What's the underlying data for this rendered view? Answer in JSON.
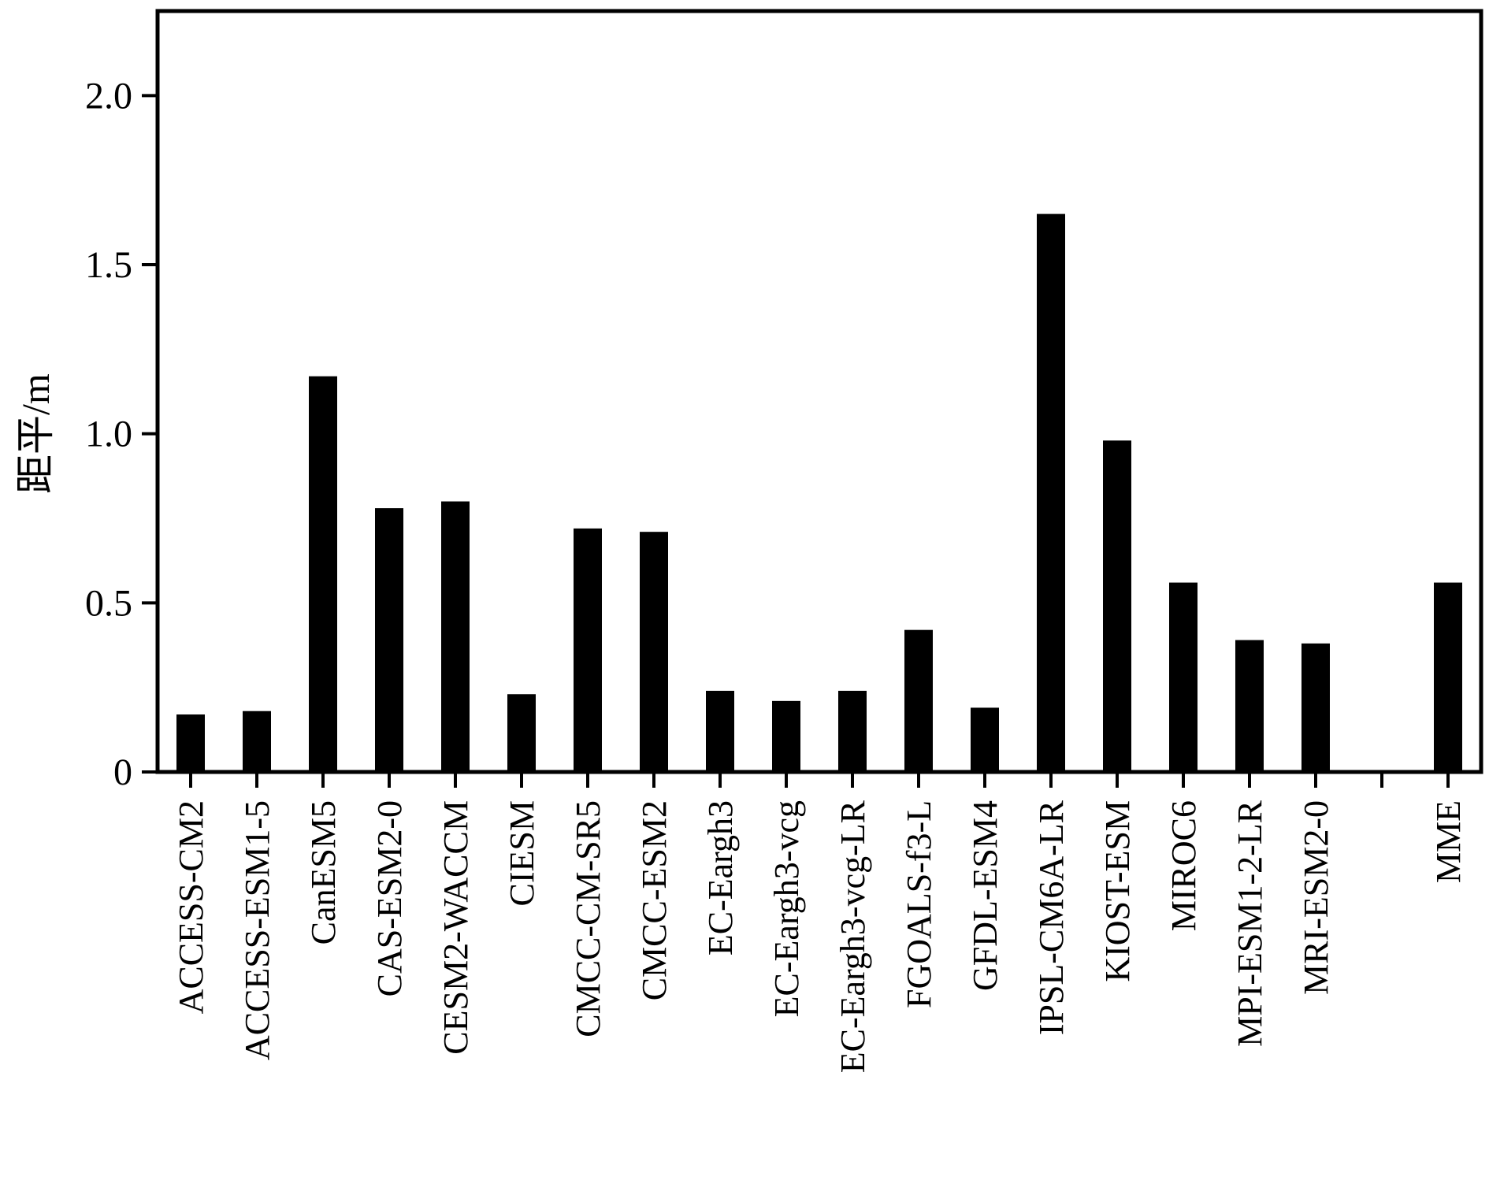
{
  "chart_data": {
    "type": "bar",
    "ylabel": "距平/m",
    "xlabel": "",
    "ylim": [
      0,
      2.25
    ],
    "yticks": [
      0,
      0.5,
      1.0,
      1.5,
      2.0
    ],
    "ytick_labels": [
      "0",
      "0.5",
      "1.0",
      "1.5",
      "2.0"
    ],
    "grid": false,
    "bar_color": "#000000",
    "categories": [
      "ACCESS-CM2",
      "ACCESS-ESM1-5",
      "CanESM5",
      "CAS-ESM2-0",
      "CESM2-WACCM",
      "CIESM",
      "CMCC-CM-SR5",
      "CMCC-ESM2",
      "EC-Eargh3",
      "EC-Eargh3-vcg",
      "EC-Eargh3-vcg-LR",
      "FGOALS-f3-L",
      "GFDL-ESM4",
      "IPSL-CM6A-LR",
      "KIOST-ESM",
      "MIROC6",
      "MPI-ESM1-2-LR",
      "MRI-ESM2-0",
      "",
      "MME"
    ],
    "values": [
      0.17,
      0.18,
      1.17,
      0.78,
      0.8,
      0.23,
      0.72,
      0.71,
      0.24,
      0.21,
      0.24,
      0.42,
      0.19,
      1.65,
      0.98,
      0.56,
      0.39,
      0.38,
      null,
      0.56
    ]
  }
}
